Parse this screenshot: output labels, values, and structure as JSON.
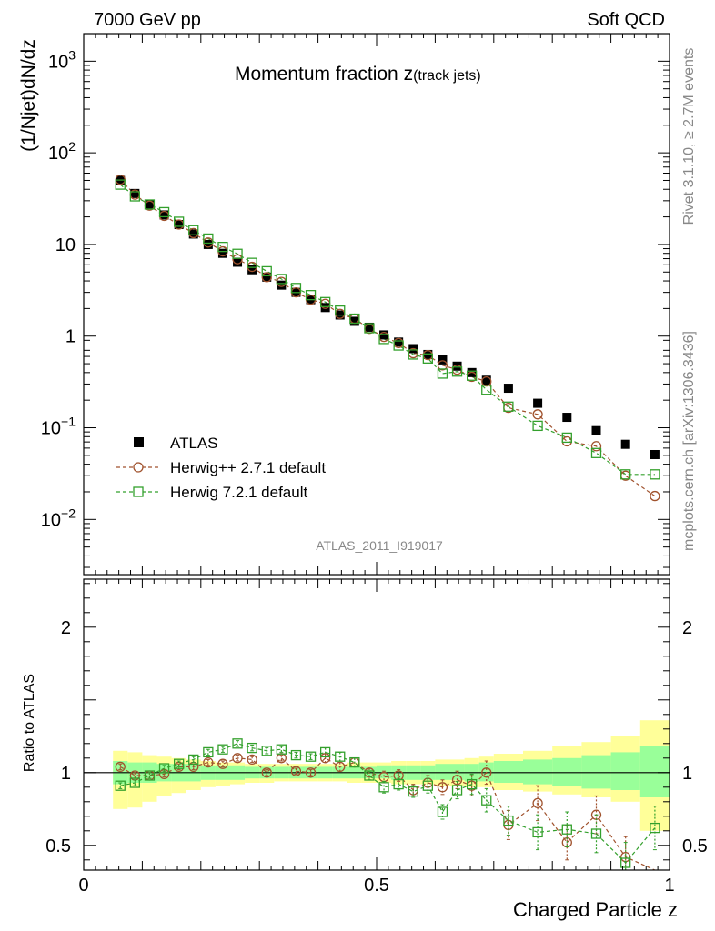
{
  "header": {
    "left": "7000 GeV pp",
    "right": "Soft QCD"
  },
  "side": {
    "rivet": "Rivet 3.1.10, ≥ 2.7M events",
    "mcplots": "mcplots.cern.ch [arXiv:1306.3436]"
  },
  "chart_data": [
    {
      "type": "scatter",
      "title_main": "Momentum fraction z",
      "title_sub": "(track jets)",
      "ylabel": "(1/Njet)dN/dz",
      "yscale": "log",
      "ylim": [
        0.0025,
        2000
      ],
      "xlim": [
        0,
        1
      ],
      "analysis_label": "ATLAS_2011_I919017",
      "y_ticks_major": [
        {
          "v": 0.01,
          "base": "10",
          "exp": "−2"
        },
        {
          "v": 0.1,
          "base": "10",
          "exp": "−1"
        },
        {
          "v": 1,
          "label": "1"
        },
        {
          "v": 10,
          "label": "10"
        },
        {
          "v": 100,
          "base": "10",
          "exp": "2"
        },
        {
          "v": 1000,
          "base": "10",
          "exp": "3"
        }
      ],
      "legend_position": "bottom-left",
      "legend": [
        "ATLAS",
        "Herwig++ 2.7.1 default",
        "Herwig 7.2.1 default"
      ],
      "x": [
        0.0625,
        0.0875,
        0.1125,
        0.1375,
        0.1625,
        0.1875,
        0.2125,
        0.2375,
        0.2625,
        0.2875,
        0.3125,
        0.3375,
        0.3625,
        0.3875,
        0.4125,
        0.4375,
        0.4625,
        0.4875,
        0.5125,
        0.5375,
        0.5625,
        0.5875,
        0.6125,
        0.6375,
        0.6625,
        0.6875,
        0.725,
        0.775,
        0.825,
        0.875,
        0.925,
        0.975
      ],
      "series": [
        {
          "name": "ATLAS",
          "color": "#000000",
          "marker": "square-filled",
          "values": [
            50,
            36,
            27,
            21,
            16.5,
            13,
            10,
            8,
            6.4,
            5.3,
            4.4,
            3.6,
            3.0,
            2.5,
            2.05,
            1.7,
            1.45,
            1.25,
            1.03,
            0.86,
            0.73,
            0.63,
            0.55,
            0.47,
            0.4,
            0.33,
            0.27,
            0.185,
            0.13,
            0.093,
            0.066,
            0.051
          ]
        },
        {
          "name": "Herwig++ 2.7.1 default",
          "color": "#a0522d",
          "marker": "circle-open",
          "values": [
            51,
            35,
            26.5,
            20.5,
            16.5,
            13.3,
            10.5,
            8.4,
            6.9,
            5.7,
            4.4,
            3.9,
            3.0,
            2.5,
            2.25,
            1.75,
            1.55,
            1.2,
            0.98,
            0.84,
            0.65,
            0.62,
            0.48,
            0.43,
            0.36,
            0.32,
            0.165,
            0.14,
            0.071,
            0.063,
            0.03,
            0.018
          ]
        },
        {
          "name": "Herwig 7.2.1 default",
          "color": "#33a02c",
          "marker": "square-open",
          "values": [
            45,
            33.5,
            27.3,
            22.5,
            17.7,
            14.3,
            11.6,
            9.4,
            7.9,
            6.3,
            5.1,
            4.2,
            3.35,
            2.8,
            2.35,
            1.9,
            1.55,
            1.22,
            0.93,
            0.79,
            0.63,
            0.57,
            0.39,
            0.41,
            0.37,
            0.26,
            0.17,
            0.105,
            0.078,
            0.053,
            0.031,
            0.031
          ]
        }
      ]
    },
    {
      "type": "scatter",
      "ylabel": "Ratio to ATLAS",
      "xlabel": "Charged Particle z",
      "xlim": [
        0,
        1
      ],
      "ylim": [
        0.33,
        2.33
      ],
      "x_ticks": [
        {
          "v": 0,
          "label": "0"
        },
        {
          "v": 0.5,
          "label": "0.5"
        },
        {
          "v": 1,
          "label": "1"
        }
      ],
      "y_ticks": [
        {
          "v": 0.5,
          "label": "0.5"
        },
        {
          "v": 1,
          "label": "1"
        },
        {
          "v": 2,
          "label": "2"
        }
      ],
      "band_colors": {
        "inner": "#99ff99",
        "outer": "#ffff99"
      },
      "bins": [
        {
          "lo": 0.05,
          "hi": 0.075,
          "inner": [
            0.92,
            1.08
          ],
          "outer": [
            0.75,
            1.15
          ]
        },
        {
          "lo": 0.075,
          "hi": 0.1,
          "inner": [
            0.93,
            1.07
          ],
          "outer": [
            0.76,
            1.14
          ]
        },
        {
          "lo": 0.1,
          "hi": 0.125,
          "inner": [
            0.93,
            1.07
          ],
          "outer": [
            0.8,
            1.12
          ]
        },
        {
          "lo": 0.125,
          "hi": 0.15,
          "inner": [
            0.94,
            1.06
          ],
          "outer": [
            0.84,
            1.11
          ]
        },
        {
          "lo": 0.15,
          "hi": 0.175,
          "inner": [
            0.94,
            1.06
          ],
          "outer": [
            0.86,
            1.1
          ]
        },
        {
          "lo": 0.175,
          "hi": 0.2,
          "inner": [
            0.94,
            1.06
          ],
          "outer": [
            0.88,
            1.09
          ]
        },
        {
          "lo": 0.2,
          "hi": 0.225,
          "inner": [
            0.95,
            1.05
          ],
          "outer": [
            0.9,
            1.08
          ]
        },
        {
          "lo": 0.225,
          "hi": 0.25,
          "inner": [
            0.95,
            1.05
          ],
          "outer": [
            0.91,
            1.07
          ]
        },
        {
          "lo": 0.25,
          "hi": 0.275,
          "inner": [
            0.95,
            1.05
          ],
          "outer": [
            0.92,
            1.07
          ]
        },
        {
          "lo": 0.275,
          "hi": 0.3,
          "inner": [
            0.96,
            1.04
          ],
          "outer": [
            0.93,
            1.06
          ]
        },
        {
          "lo": 0.3,
          "hi": 0.325,
          "inner": [
            0.96,
            1.04
          ],
          "outer": [
            0.93,
            1.06
          ]
        },
        {
          "lo": 0.325,
          "hi": 0.35,
          "inner": [
            0.96,
            1.04
          ],
          "outer": [
            0.94,
            1.06
          ]
        },
        {
          "lo": 0.35,
          "hi": 0.375,
          "inner": [
            0.96,
            1.04
          ],
          "outer": [
            0.94,
            1.06
          ]
        },
        {
          "lo": 0.375,
          "hi": 0.4,
          "inner": [
            0.96,
            1.04
          ],
          "outer": [
            0.94,
            1.06
          ]
        },
        {
          "lo": 0.4,
          "hi": 0.425,
          "inner": [
            0.96,
            1.04
          ],
          "outer": [
            0.94,
            1.06
          ]
        },
        {
          "lo": 0.425,
          "hi": 0.45,
          "inner": [
            0.96,
            1.04
          ],
          "outer": [
            0.94,
            1.06
          ]
        },
        {
          "lo": 0.45,
          "hi": 0.475,
          "inner": [
            0.96,
            1.04
          ],
          "outer": [
            0.93,
            1.07
          ]
        },
        {
          "lo": 0.475,
          "hi": 0.5,
          "inner": [
            0.96,
            1.04
          ],
          "outer": [
            0.93,
            1.07
          ]
        },
        {
          "lo": 0.5,
          "hi": 0.525,
          "inner": [
            0.96,
            1.05
          ],
          "outer": [
            0.93,
            1.07
          ]
        },
        {
          "lo": 0.525,
          "hi": 0.55,
          "inner": [
            0.95,
            1.05
          ],
          "outer": [
            0.92,
            1.08
          ]
        },
        {
          "lo": 0.55,
          "hi": 0.575,
          "inner": [
            0.95,
            1.05
          ],
          "outer": [
            0.92,
            1.08
          ]
        },
        {
          "lo": 0.575,
          "hi": 0.6,
          "inner": [
            0.95,
            1.05
          ],
          "outer": [
            0.92,
            1.08
          ]
        },
        {
          "lo": 0.6,
          "hi": 0.625,
          "inner": [
            0.95,
            1.06
          ],
          "outer": [
            0.91,
            1.09
          ]
        },
        {
          "lo": 0.625,
          "hi": 0.65,
          "inner": [
            0.95,
            1.06
          ],
          "outer": [
            0.91,
            1.09
          ]
        },
        {
          "lo": 0.65,
          "hi": 0.675,
          "inner": [
            0.94,
            1.06
          ],
          "outer": [
            0.9,
            1.1
          ]
        },
        {
          "lo": 0.675,
          "hi": 0.7,
          "inner": [
            0.94,
            1.07
          ],
          "outer": [
            0.9,
            1.11
          ]
        },
        {
          "lo": 0.7,
          "hi": 0.75,
          "inner": [
            0.93,
            1.08
          ],
          "outer": [
            0.88,
            1.13
          ]
        },
        {
          "lo": 0.75,
          "hi": 0.8,
          "inner": [
            0.92,
            1.09
          ],
          "outer": [
            0.87,
            1.15
          ]
        },
        {
          "lo": 0.8,
          "hi": 0.85,
          "inner": [
            0.91,
            1.1
          ],
          "outer": [
            0.85,
            1.18
          ]
        },
        {
          "lo": 0.85,
          "hi": 0.9,
          "inner": [
            0.89,
            1.12
          ],
          "outer": [
            0.83,
            1.21
          ]
        },
        {
          "lo": 0.9,
          "hi": 0.95,
          "inner": [
            0.88,
            1.14
          ],
          "outer": [
            0.8,
            1.25
          ]
        },
        {
          "lo": 0.95,
          "hi": 1.0,
          "inner": [
            0.83,
            1.18
          ],
          "outer": [
            0.6,
            1.36
          ]
        }
      ],
      "series": [
        {
          "name": "Herwig++ 2.7.1 default",
          "color": "#a0522d",
          "values": [
            1.04,
            0.98,
            0.98,
            0.99,
            1.04,
            1.04,
            1.07,
            1.06,
            1.1,
            1.09,
            1.0,
            1.1,
            1.01,
            1.0,
            1.1,
            1.04,
            1.07,
            1.0,
            0.97,
            0.98,
            0.88,
            0.93,
            0.9,
            0.95,
            0.91,
            1.0,
            0.64,
            0.79,
            0.52,
            0.71,
            0.42,
            0.3
          ],
          "errors": [
            0.02,
            0.02,
            0.02,
            0.02,
            0.02,
            0.02,
            0.02,
            0.02,
            0.02,
            0.02,
            0.02,
            0.02,
            0.02,
            0.02,
            0.03,
            0.03,
            0.03,
            0.03,
            0.04,
            0.04,
            0.04,
            0.05,
            0.05,
            0.06,
            0.07,
            0.08,
            0.1,
            0.12,
            0.12,
            0.13,
            0.14,
            0.15
          ]
        },
        {
          "name": "Herwig 7.2.1 default",
          "color": "#33a02c",
          "values": [
            0.91,
            0.93,
            0.98,
            1.03,
            1.06,
            1.09,
            1.14,
            1.16,
            1.2,
            1.17,
            1.15,
            1.16,
            1.12,
            1.11,
            1.14,
            1.11,
            1.07,
            0.98,
            0.9,
            0.92,
            0.87,
            0.91,
            0.73,
            0.88,
            0.92,
            0.81,
            0.67,
            0.59,
            0.61,
            0.58,
            0.38,
            0.62
          ],
          "errors": [
            0.02,
            0.02,
            0.02,
            0.02,
            0.02,
            0.02,
            0.02,
            0.02,
            0.02,
            0.02,
            0.02,
            0.02,
            0.02,
            0.02,
            0.03,
            0.03,
            0.03,
            0.03,
            0.04,
            0.04,
            0.04,
            0.05,
            0.05,
            0.06,
            0.07,
            0.08,
            0.1,
            0.12,
            0.12,
            0.13,
            0.14,
            0.15
          ]
        }
      ]
    }
  ]
}
